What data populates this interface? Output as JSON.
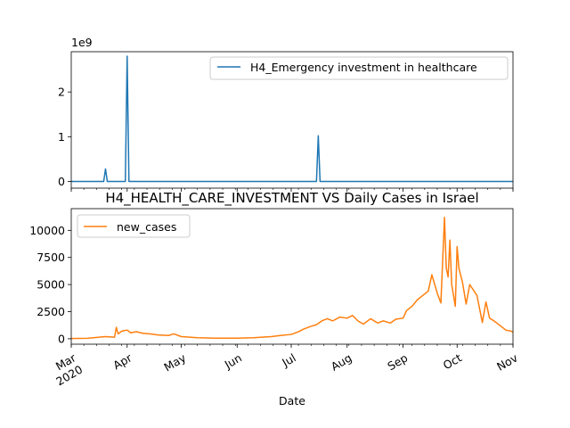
{
  "chart_data": [
    {
      "type": "line",
      "title": "",
      "offset_label": "1e9",
      "xlabel": "",
      "ylabel": "",
      "ylim": [
        -0.15,
        2.9
      ],
      "yticks": [
        0,
        1,
        2
      ],
      "ytick_labels": [
        "0",
        "1",
        "2"
      ],
      "xlim": [
        "2020-03-01",
        "2020-11-01"
      ],
      "legend": "upper right",
      "color": "#1f77b4",
      "series": [
        {
          "name": "H4_Emergency investment in healthcare",
          "x": [
            "2020-03-01",
            "2020-03-19",
            "2020-03-20",
            "2020-03-21",
            "2020-03-31",
            "2020-04-01",
            "2020-04-02",
            "2020-07-15",
            "2020-07-16",
            "2020-07-17",
            "2020-11-01"
          ],
          "values": [
            0,
            0,
            0.28,
            0,
            0,
            2.8,
            0,
            0,
            1.02,
            0,
            0
          ]
        }
      ]
    },
    {
      "type": "line",
      "title": "H4_HEALTH_CARE_INVESTMENT VS Daily Cases in Israel",
      "xlabel": "Date",
      "ylabel": "",
      "ylim": [
        -500,
        12000
      ],
      "yticks": [
        0,
        2500,
        5000,
        7500,
        10000
      ],
      "ytick_labels": [
        "0",
        "2500",
        "5000",
        "7500",
        "10000"
      ],
      "xlim": [
        "2020-03-01",
        "2020-11-01"
      ],
      "xticks": [
        "2020-03-01",
        "2020-04-01",
        "2020-05-01",
        "2020-06-01",
        "2020-07-01",
        "2020-08-01",
        "2020-09-01",
        "2020-10-01",
        "2020-11-01"
      ],
      "xtick_labels": [
        "Mar\n2020",
        "Apr",
        "May",
        "Jun",
        "Jul",
        "Aug",
        "Sep",
        "Oct",
        "Nov"
      ],
      "legend": "upper left",
      "color": "#ff7f0e",
      "series": [
        {
          "name": "new_cases",
          "x": [
            "2020-03-01",
            "2020-03-10",
            "2020-03-20",
            "2020-03-25",
            "2020-03-26",
            "2020-03-27",
            "2020-03-29",
            "2020-04-01",
            "2020-04-03",
            "2020-04-06",
            "2020-04-10",
            "2020-04-14",
            "2020-04-18",
            "2020-04-24",
            "2020-04-27",
            "2020-05-01",
            "2020-05-10",
            "2020-05-20",
            "2020-06-01",
            "2020-06-10",
            "2020-06-20",
            "2020-06-25",
            "2020-07-01",
            "2020-07-05",
            "2020-07-08",
            "2020-07-12",
            "2020-07-15",
            "2020-07-18",
            "2020-07-21",
            "2020-07-24",
            "2020-07-28",
            "2020-08-01",
            "2020-08-04",
            "2020-08-07",
            "2020-08-10",
            "2020-08-14",
            "2020-08-18",
            "2020-08-21",
            "2020-08-25",
            "2020-08-28",
            "2020-09-01",
            "2020-09-03",
            "2020-09-06",
            "2020-09-09",
            "2020-09-12",
            "2020-09-15",
            "2020-09-17",
            "2020-09-20",
            "2020-09-22",
            "2020-09-24",
            "2020-09-25",
            "2020-09-26",
            "2020-09-27",
            "2020-09-28",
            "2020-09-30",
            "2020-10-01",
            "2020-10-02",
            "2020-10-04",
            "2020-10-06",
            "2020-10-08",
            "2020-10-12",
            "2020-10-15",
            "2020-10-17",
            "2020-10-19",
            "2020-10-21",
            "2020-10-25",
            "2020-10-28",
            "2020-10-31",
            "2020-11-01"
          ],
          "values": [
            20,
            40,
            200,
            150,
            1050,
            450,
            700,
            800,
            550,
            650,
            500,
            450,
            350,
            300,
            450,
            200,
            100,
            50,
            50,
            100,
            200,
            300,
            400,
            650,
            900,
            1150,
            1300,
            1650,
            1850,
            1650,
            2000,
            1900,
            2150,
            1650,
            1350,
            1850,
            1450,
            1650,
            1450,
            1800,
            1900,
            2600,
            3000,
            3600,
            4000,
            4400,
            5900,
            4200,
            3300,
            11200,
            6500,
            5700,
            9100,
            5000,
            3000,
            8500,
            6500,
            5200,
            3200,
            5000,
            4000,
            1500,
            3400,
            1900,
            1700,
            1200,
            800,
            700,
            600
          ]
        }
      ]
    }
  ]
}
